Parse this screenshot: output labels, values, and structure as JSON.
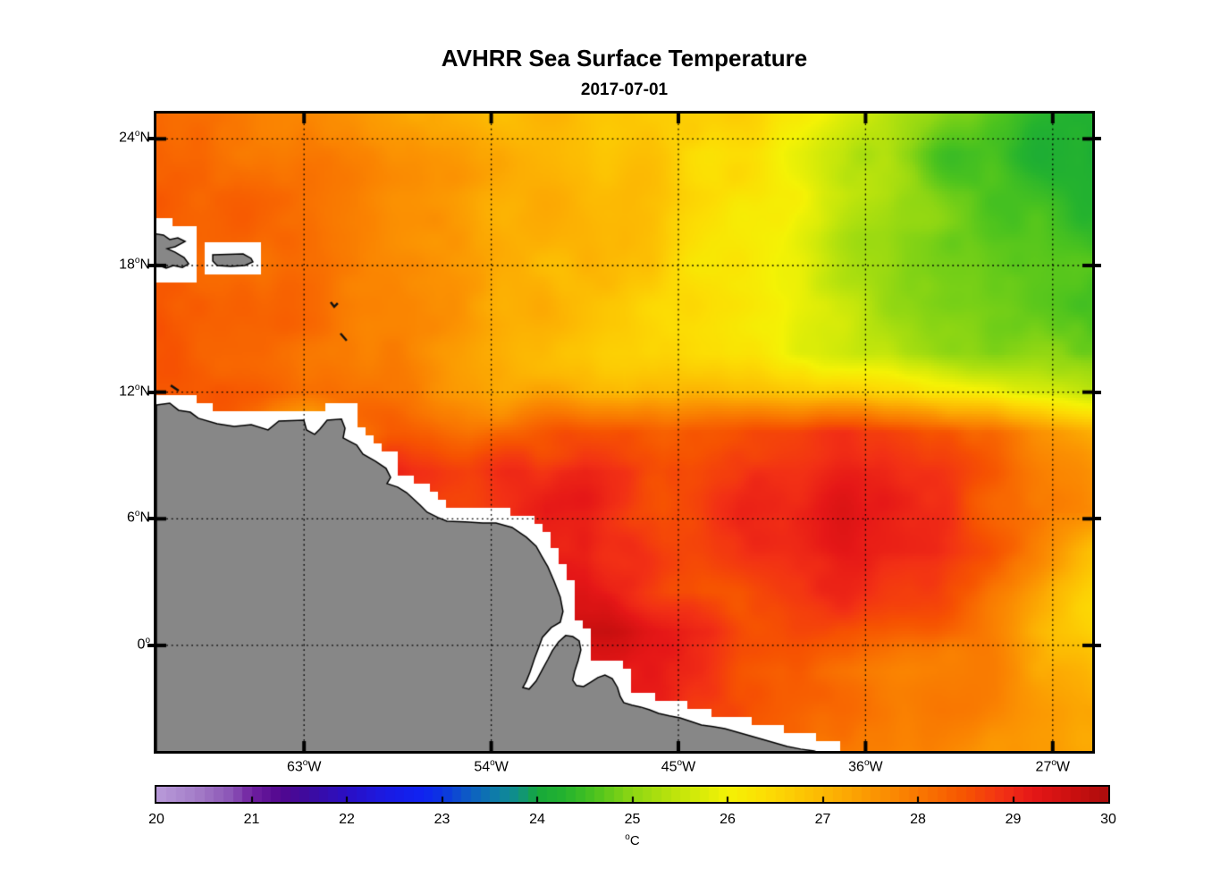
{
  "title": "AVHRR Sea Surface Temperature",
  "subtitle": "2017-07-01",
  "axes": {
    "deg_symbol": "o",
    "x_ticks": [
      {
        "num": "63",
        "suffix": "W",
        "lon_w": 63
      },
      {
        "num": "54",
        "suffix": "W",
        "lon_w": 54
      },
      {
        "num": "45",
        "suffix": "W",
        "lon_w": 45
      },
      {
        "num": "36",
        "suffix": "W",
        "lon_w": 36
      },
      {
        "num": "27",
        "suffix": "W",
        "lon_w": 27
      }
    ],
    "y_ticks": [
      {
        "num": "24",
        "suffix": "N",
        "lat": 24
      },
      {
        "num": "18",
        "suffix": "N",
        "lat": 18
      },
      {
        "num": "12",
        "suffix": "N",
        "lat": 12
      },
      {
        "num": "6",
        "suffix": "N",
        "lat": 6
      },
      {
        "num": "0",
        "suffix": "",
        "lat": 0
      }
    ]
  },
  "colorbar": {
    "tick_labels": [
      "20",
      "21",
      "22",
      "23",
      "24",
      "25",
      "26",
      "27",
      "28",
      "29",
      "30"
    ],
    "tick_values": [
      20,
      21,
      22,
      23,
      24,
      25,
      26,
      27,
      28,
      29,
      30
    ],
    "unit_deg": "o",
    "unit": "C",
    "min": 20,
    "max": 30
  },
  "chart_data": {
    "type": "heatmap",
    "title": "AVHRR Sea Surface Temperature",
    "date": "2017-07-01",
    "xlabel_ticks_deg_w": [
      63,
      54,
      45,
      36,
      27
    ],
    "ylabel_ticks_deg_n": [
      24,
      18,
      12,
      6,
      0
    ],
    "lon_range_deg_w": [
      70.1,
      25.1
    ],
    "lat_range_deg_n": [
      -5.0,
      25.2
    ],
    "units": "degC",
    "color_scale_range": [
      20,
      30
    ],
    "land_color": "#878787",
    "coast_halo_color": "#ffffff",
    "grid_note": "sst_c rows north-to-south lat 25.2..-5.0, cols west-to-east lon 70.1W..25.1W",
    "sst_c": [
      [
        28.1,
        28.0,
        27.9,
        27.8,
        27.7,
        27.6,
        27.5,
        27.3,
        27.2,
        27.1,
        27.0,
        26.9,
        26.8,
        26.7,
        26.6,
        26.5,
        26.3,
        26.0,
        25.6,
        25.2,
        24.9,
        24.7,
        24.5,
        24.4,
        24.3
      ],
      [
        28.2,
        28.1,
        28.0,
        27.9,
        27.8,
        27.7,
        27.5,
        27.4,
        27.3,
        27.1,
        27.0,
        26.9,
        26.8,
        26.7,
        26.5,
        26.3,
        26.1,
        25.8,
        25.4,
        25.0,
        24.7,
        24.5,
        24.4,
        24.3,
        24.2
      ],
      [
        28.3,
        28.2,
        28.2,
        28.1,
        28.0,
        27.8,
        27.6,
        27.5,
        27.3,
        27.2,
        27.1,
        27.0,
        26.9,
        26.8,
        26.6,
        26.4,
        26.2,
        25.9,
        25.5,
        25.1,
        24.8,
        24.6,
        24.5,
        24.4,
        24.3
      ],
      [
        28.4,
        28.3,
        28.3,
        28.2,
        28.1,
        27.9,
        27.7,
        27.5,
        27.4,
        27.2,
        27.1,
        27.0,
        26.9,
        26.7,
        26.5,
        26.3,
        26.0,
        25.7,
        25.3,
        25.0,
        24.8,
        24.6,
        24.5,
        24.5,
        24.4
      ],
      [
        28.4,
        28.4,
        28.3,
        28.2,
        28.1,
        28.0,
        27.8,
        27.6,
        27.4,
        27.2,
        27.0,
        26.9,
        26.8,
        26.6,
        26.4,
        26.2,
        25.9,
        25.6,
        25.3,
        25.0,
        24.8,
        24.7,
        24.6,
        24.6,
        24.5
      ],
      [
        28.5,
        28.4,
        28.3,
        28.2,
        28.1,
        28.0,
        27.8,
        27.6,
        27.4,
        27.2,
        27.0,
        26.8,
        26.7,
        26.5,
        26.3,
        26.1,
        25.9,
        25.6,
        25.4,
        25.1,
        25.0,
        24.9,
        24.8,
        24.8,
        24.7
      ],
      [
        28.5,
        28.5,
        28.4,
        28.3,
        28.2,
        28.0,
        27.8,
        27.6,
        27.4,
        27.2,
        27.0,
        26.8,
        26.6,
        26.5,
        26.3,
        26.2,
        26.0,
        25.8,
        25.6,
        25.4,
        25.2,
        25.1,
        25.0,
        25.0,
        24.9
      ],
      [
        28.6,
        28.5,
        28.4,
        28.3,
        28.2,
        28.0,
        27.9,
        27.7,
        27.5,
        27.3,
        27.2,
        27.1,
        27.0,
        26.9,
        26.9,
        26.8,
        26.8,
        26.7,
        26.6,
        26.5,
        26.3,
        26.1,
        25.9,
        25.7,
        25.6
      ],
      [
        28.6,
        28.5,
        28.2,
        27.2,
        26.9,
        28.0,
        28.3,
        28.2,
        28.0,
        28.2,
        28.4,
        28.6,
        28.5,
        28.3,
        28.4,
        28.6,
        28.7,
        28.8,
        28.8,
        28.7,
        28.5,
        28.2,
        27.9,
        27.6,
        27.3
      ],
      [
        28.6,
        28.5,
        28.3,
        28.0,
        28.3,
        28.8,
        28.9,
        28.8,
        28.7,
        28.9,
        29.0,
        29.1,
        28.9,
        28.6,
        28.7,
        28.9,
        29.0,
        29.0,
        29.1,
        29.0,
        28.8,
        28.5,
        28.2,
        27.9,
        27.6
      ],
      [
        28.8,
        28.8,
        28.8,
        28.8,
        28.8,
        28.8,
        28.8,
        28.8,
        28.8,
        29.0,
        29.2,
        29.0,
        28.8,
        28.6,
        28.8,
        29.0,
        29.1,
        29.2,
        29.2,
        29.1,
        28.9,
        28.6,
        28.3,
        28.0,
        27.7
      ],
      [
        28.9,
        28.9,
        28.9,
        28.9,
        28.9,
        28.9,
        28.9,
        28.9,
        28.9,
        28.9,
        29.0,
        29.2,
        28.9,
        28.6,
        28.7,
        28.9,
        29.0,
        29.1,
        29.2,
        29.2,
        29.0,
        28.6,
        28.1,
        27.5,
        27.0
      ],
      [
        29.0,
        29.0,
        29.0,
        29.0,
        29.0,
        29.0,
        29.0,
        29.0,
        29.0,
        29.0,
        29.1,
        29.4,
        29.0,
        28.7,
        28.5,
        28.6,
        28.8,
        28.9,
        28.9,
        28.8,
        28.6,
        28.2,
        27.7,
        27.2,
        26.7
      ],
      [
        29.1,
        29.1,
        29.1,
        29.1,
        29.1,
        29.1,
        29.1,
        29.1,
        29.1,
        29.1,
        29.2,
        29.5,
        29.6,
        29.3,
        29.0,
        28.6,
        28.5,
        28.5,
        28.5,
        28.4,
        28.3,
        28.0,
        27.5,
        27.0,
        26.6
      ],
      [
        29.0,
        29.0,
        29.0,
        29.0,
        29.0,
        29.0,
        29.0,
        29.0,
        29.0,
        29.0,
        29.0,
        29.1,
        29.2,
        29.2,
        29.0,
        28.5,
        28.3,
        28.2,
        28.1,
        28.0,
        27.9,
        27.8,
        27.6,
        27.2,
        26.9
      ],
      [
        28.8,
        28.8,
        28.8,
        28.8,
        28.8,
        28.8,
        28.8,
        28.8,
        28.8,
        28.8,
        28.8,
        28.8,
        28.9,
        29.0,
        28.9,
        28.6,
        28.4,
        28.2,
        28.1,
        28.0,
        27.9,
        27.8,
        27.6,
        27.4,
        27.2
      ],
      [
        28.6,
        28.6,
        28.6,
        28.6,
        28.6,
        28.6,
        28.6,
        28.6,
        28.6,
        28.6,
        28.6,
        28.6,
        28.7,
        28.8,
        28.7,
        28.5,
        28.3,
        27.9,
        27.9,
        27.8,
        27.7,
        27.6,
        27.5,
        27.4,
        27.3
      ]
    ],
    "colormap_stops": [
      [
        20.0,
        "#b89bd9"
      ],
      [
        20.4,
        "#a57fc9"
      ],
      [
        20.8,
        "#8a52b5"
      ],
      [
        21.0,
        "#6f1fa0"
      ],
      [
        21.3,
        "#52078f"
      ],
      [
        21.6,
        "#3c0b9f"
      ],
      [
        22.0,
        "#2a0fc4"
      ],
      [
        22.4,
        "#1b1ae2"
      ],
      [
        22.8,
        "#0f23f2"
      ],
      [
        23.0,
        "#0c35e0"
      ],
      [
        23.3,
        "#0d5fc2"
      ],
      [
        23.6,
        "#0e81a4"
      ],
      [
        23.8,
        "#109184"
      ],
      [
        24.0,
        "#16a83a"
      ],
      [
        24.3,
        "#25b32e"
      ],
      [
        24.6,
        "#4cc31e"
      ],
      [
        25.0,
        "#8ed613"
      ],
      [
        25.5,
        "#c4e60b"
      ],
      [
        26.0,
        "#f4f205"
      ],
      [
        26.4,
        "#fcdd04"
      ],
      [
        27.0,
        "#fcb803"
      ],
      [
        27.5,
        "#fb9702"
      ],
      [
        28.0,
        "#f97801"
      ],
      [
        28.5,
        "#f65301"
      ],
      [
        28.9,
        "#f23015"
      ],
      [
        29.2,
        "#e51717"
      ],
      [
        29.6,
        "#cc1010"
      ],
      [
        30.0,
        "#ab0c0c"
      ]
    ],
    "land": [
      {
        "name": "south-america",
        "pts": [
          [
            70.1,
            11.39
          ],
          [
            69.46,
            11.48
          ],
          [
            69.03,
            11.14
          ],
          [
            68.47,
            11.05
          ],
          [
            68.08,
            10.76
          ],
          [
            67.18,
            10.5
          ],
          [
            66.36,
            10.38
          ],
          [
            65.54,
            10.46
          ],
          [
            64.73,
            10.21
          ],
          [
            64.21,
            10.63
          ],
          [
            63.01,
            10.67
          ],
          [
            62.88,
            10.21
          ],
          [
            62.49,
            10.0
          ],
          [
            62.24,
            10.25
          ],
          [
            61.89,
            10.67
          ],
          [
            61.2,
            10.72
          ],
          [
            61.03,
            10.29
          ],
          [
            61.12,
            9.83
          ],
          [
            60.47,
            9.49
          ],
          [
            60.17,
            9.07
          ],
          [
            59.57,
            8.73
          ],
          [
            59.06,
            8.39
          ],
          [
            58.84,
            7.96
          ],
          [
            59.01,
            7.67
          ],
          [
            58.5,
            7.5
          ],
          [
            58.07,
            7.24
          ],
          [
            57.42,
            6.65
          ],
          [
            57.08,
            6.31
          ],
          [
            56.56,
            6.06
          ],
          [
            56.13,
            5.89
          ],
          [
            55.27,
            5.85
          ],
          [
            54.41,
            5.8
          ],
          [
            53.77,
            5.8
          ],
          [
            53.0,
            5.59
          ],
          [
            52.31,
            5.13
          ],
          [
            51.84,
            4.7
          ],
          [
            51.58,
            4.24
          ],
          [
            51.28,
            3.73
          ],
          [
            50.98,
            3.05
          ],
          [
            50.68,
            2.29
          ],
          [
            50.55,
            1.61
          ],
          [
            50.68,
            1.1
          ],
          [
            51.11,
            0.85
          ],
          [
            51.54,
            0.38
          ],
          [
            51.71,
            -0.08
          ],
          [
            51.92,
            -0.63
          ],
          [
            52.14,
            -1.27
          ],
          [
            52.31,
            -1.69
          ],
          [
            52.48,
            -1.99
          ],
          [
            52.18,
            -2.07
          ],
          [
            51.84,
            -1.69
          ],
          [
            51.54,
            -1.14
          ],
          [
            51.28,
            -0.67
          ],
          [
            51.06,
            -0.25
          ],
          [
            50.76,
            0.17
          ],
          [
            50.42,
            0.47
          ],
          [
            50.08,
            0.42
          ],
          [
            49.77,
            0.21
          ],
          [
            49.69,
            -0.21
          ],
          [
            49.82,
            -0.72
          ],
          [
            49.99,
            -1.23
          ],
          [
            50.08,
            -1.65
          ],
          [
            49.9,
            -1.9
          ],
          [
            49.56,
            -1.95
          ],
          [
            49.22,
            -1.74
          ],
          [
            48.87,
            -1.52
          ],
          [
            48.53,
            -1.4
          ],
          [
            48.18,
            -1.57
          ],
          [
            47.93,
            -1.99
          ],
          [
            47.8,
            -2.41
          ],
          [
            47.63,
            -2.71
          ],
          [
            47.24,
            -2.83
          ],
          [
            46.81,
            -2.92
          ],
          [
            46.38,
            -3.05
          ],
          [
            45.95,
            -3.22
          ],
          [
            45.43,
            -3.34
          ],
          [
            44.92,
            -3.43
          ],
          [
            44.4,
            -3.6
          ],
          [
            43.89,
            -3.77
          ],
          [
            43.33,
            -3.85
          ],
          [
            42.77,
            -3.94
          ],
          [
            42.17,
            -4.11
          ],
          [
            41.56,
            -4.28
          ],
          [
            40.96,
            -4.45
          ],
          [
            40.36,
            -4.62
          ],
          [
            39.76,
            -4.79
          ],
          [
            39.12,
            -4.91
          ],
          [
            38.47,
            -5.0
          ],
          [
            37.6,
            -5.3
          ],
          [
            70.1,
            -5.3
          ]
        ]
      },
      {
        "name": "hispaniola-tip",
        "pts": [
          [
            70.3,
            19.52
          ],
          [
            69.76,
            19.44
          ],
          [
            69.46,
            19.23
          ],
          [
            69.07,
            19.31
          ],
          [
            68.72,
            19.14
          ],
          [
            69.2,
            18.89
          ],
          [
            69.58,
            18.8
          ],
          [
            69.2,
            18.63
          ],
          [
            68.77,
            18.38
          ],
          [
            68.55,
            18.08
          ],
          [
            68.85,
            17.91
          ],
          [
            69.28,
            18.0
          ],
          [
            69.63,
            17.87
          ],
          [
            69.97,
            18.0
          ],
          [
            70.3,
            18.17
          ]
        ]
      },
      {
        "name": "puerto-rico",
        "pts": [
          [
            67.39,
            18.51
          ],
          [
            65.93,
            18.55
          ],
          [
            65.55,
            18.34
          ],
          [
            65.46,
            18.17
          ],
          [
            65.85,
            18.0
          ],
          [
            66.53,
            17.96
          ],
          [
            67.18,
            18.0
          ],
          [
            67.39,
            18.21
          ]
        ]
      }
    ],
    "islets": [
      {
        "name": "aruba-curacao",
        "pts": [
          [
            69.41,
            12.32
          ],
          [
            69.03,
            12.07
          ]
        ]
      },
      {
        "name": "guadeloupe",
        "pts": [
          [
            61.72,
            16.26
          ],
          [
            61.55,
            16.05
          ],
          [
            61.38,
            16.22
          ]
        ]
      },
      {
        "name": "martinique",
        "pts": [
          [
            61.25,
            14.78
          ],
          [
            60.95,
            14.44
          ]
        ]
      }
    ]
  }
}
